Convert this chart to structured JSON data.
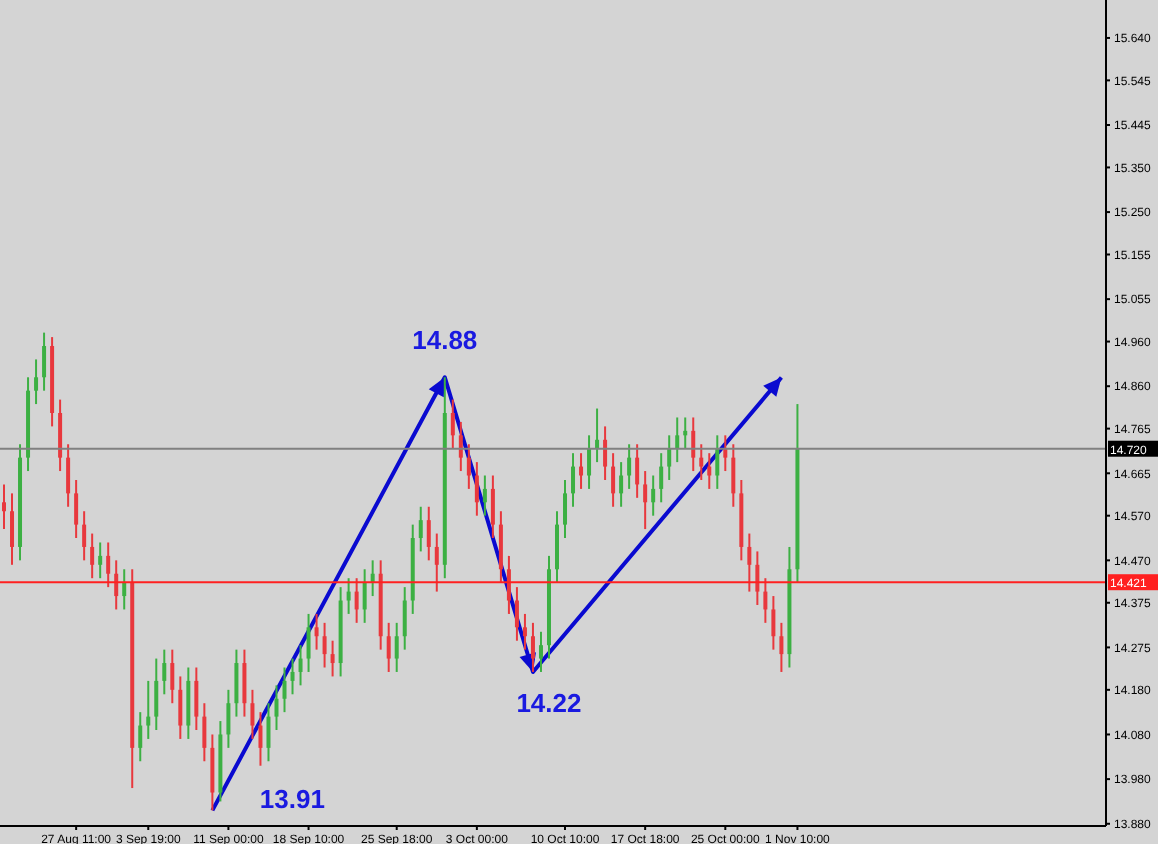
{
  "chart_data": {
    "type": "candlestick",
    "categories": [
      null,
      null,
      null,
      null,
      null,
      null,
      null,
      null,
      null,
      "27 Aug 11:00",
      null,
      null,
      null,
      null,
      null,
      null,
      null,
      null,
      "3 Sep 19:00",
      null,
      null,
      null,
      null,
      null,
      null,
      null,
      null,
      null,
      "11 Sep 00:00",
      null,
      null,
      null,
      null,
      null,
      null,
      null,
      null,
      null,
      "18 Sep 10:00",
      null,
      null,
      null,
      null,
      null,
      null,
      null,
      null,
      null,
      null,
      "25 Sep 18:00",
      null,
      null,
      null,
      null,
      null,
      null,
      null,
      null,
      null,
      "3 Oct 00:00",
      null,
      null,
      null,
      null,
      null,
      null,
      null,
      null,
      null,
      null,
      "10 Oct 10:00",
      null,
      null,
      null,
      null,
      null,
      null,
      null,
      null,
      null,
      "17 Oct 18:00",
      null,
      null,
      null,
      null,
      null,
      null,
      null,
      null,
      null,
      "25 Oct 00:00",
      null,
      null,
      null,
      null,
      null,
      null,
      null,
      null,
      "1 Nov 10:00",
      null,
      null,
      null,
      null,
      null,
      null,
      null,
      null,
      null,
      null,
      null,
      null,
      null,
      null,
      null,
      null,
      null,
      null,
      null,
      null,
      null,
      null,
      null,
      null,
      null,
      null,
      null,
      null,
      null,
      null,
      null,
      null,
      null,
      null,
      null,
      null,
      null,
      null
    ],
    "ohlc": [
      [
        14.6,
        14.64,
        14.54,
        14.58
      ],
      [
        14.58,
        14.62,
        14.46,
        14.5
      ],
      [
        14.5,
        14.73,
        14.47,
        14.7
      ],
      [
        14.7,
        14.88,
        14.67,
        14.85
      ],
      [
        14.85,
        14.92,
        14.82,
        14.88
      ],
      [
        14.88,
        14.98,
        14.85,
        14.95
      ],
      [
        14.95,
        14.97,
        14.77,
        14.8
      ],
      [
        14.8,
        14.83,
        14.67,
        14.7
      ],
      [
        14.7,
        14.73,
        14.59,
        14.62
      ],
      [
        14.62,
        14.65,
        14.52,
        14.55
      ],
      [
        14.55,
        14.58,
        14.47,
        14.5
      ],
      [
        14.5,
        14.53,
        14.43,
        14.46
      ],
      [
        14.46,
        14.51,
        14.43,
        14.48
      ],
      [
        14.48,
        14.51,
        14.41,
        14.44
      ],
      [
        14.44,
        14.47,
        14.36,
        14.39
      ],
      [
        14.39,
        14.45,
        14.36,
        14.42
      ],
      [
        14.42,
        14.45,
        13.96,
        14.05
      ],
      [
        14.05,
        14.13,
        14.02,
        14.1
      ],
      [
        14.1,
        14.2,
        14.07,
        14.12
      ],
      [
        14.12,
        14.25,
        14.09,
        14.2
      ],
      [
        14.2,
        14.27,
        14.17,
        14.24
      ],
      [
        14.24,
        14.27,
        14.15,
        14.18
      ],
      [
        14.18,
        14.21,
        14.07,
        14.1
      ],
      [
        14.1,
        14.23,
        14.07,
        14.2
      ],
      [
        14.2,
        14.23,
        14.09,
        14.12
      ],
      [
        14.12,
        14.15,
        14.02,
        14.05
      ],
      [
        14.05,
        14.08,
        13.91,
        13.95
      ],
      [
        13.95,
        14.11,
        13.93,
        14.08
      ],
      [
        14.08,
        14.18,
        14.05,
        14.15
      ],
      [
        14.15,
        14.27,
        14.12,
        14.24
      ],
      [
        14.24,
        14.27,
        14.12,
        14.15
      ],
      [
        14.15,
        14.18,
        14.07,
        14.1
      ],
      [
        14.1,
        14.13,
        14.01,
        14.05
      ],
      [
        14.05,
        14.15,
        14.02,
        14.12
      ],
      [
        14.12,
        14.19,
        14.09,
        14.16
      ],
      [
        14.16,
        14.23,
        14.13,
        14.2
      ],
      [
        14.2,
        14.25,
        14.17,
        14.22
      ],
      [
        14.22,
        14.28,
        14.19,
        14.25
      ],
      [
        14.25,
        14.35,
        14.22,
        14.32
      ],
      [
        14.32,
        14.35,
        14.27,
        14.3
      ],
      [
        14.3,
        14.33,
        14.23,
        14.26
      ],
      [
        14.26,
        14.29,
        14.21,
        14.24
      ],
      [
        14.24,
        14.41,
        14.21,
        14.38
      ],
      [
        14.38,
        14.43,
        14.35,
        14.4
      ],
      [
        14.4,
        14.43,
        14.33,
        14.36
      ],
      [
        14.36,
        14.45,
        14.33,
        14.42
      ],
      [
        14.42,
        14.47,
        14.39,
        14.44
      ],
      [
        14.44,
        14.47,
        14.27,
        14.3
      ],
      [
        14.3,
        14.33,
        14.22,
        14.25
      ],
      [
        14.25,
        14.33,
        14.22,
        14.3
      ],
      [
        14.3,
        14.41,
        14.27,
        14.38
      ],
      [
        14.38,
        14.55,
        14.35,
        14.52
      ],
      [
        14.52,
        14.59,
        14.49,
        14.56
      ],
      [
        14.56,
        14.59,
        14.47,
        14.5
      ],
      [
        14.5,
        14.53,
        14.4,
        14.46
      ],
      [
        14.46,
        14.88,
        14.43,
        14.8
      ],
      [
        14.8,
        14.83,
        14.72,
        14.75
      ],
      [
        14.75,
        14.78,
        14.67,
        14.7
      ],
      [
        14.7,
        14.73,
        14.63,
        14.66
      ],
      [
        14.66,
        14.69,
        14.57,
        14.6
      ],
      [
        14.6,
        14.66,
        14.57,
        14.63
      ],
      [
        14.63,
        14.66,
        14.52,
        14.55
      ],
      [
        14.55,
        14.58,
        14.42,
        14.45
      ],
      [
        14.45,
        14.48,
        14.35,
        14.38
      ],
      [
        14.38,
        14.41,
        14.29,
        14.32
      ],
      [
        14.32,
        14.35,
        14.27,
        14.3
      ],
      [
        14.3,
        14.33,
        14.22,
        14.25
      ],
      [
        14.25,
        14.31,
        14.22,
        14.28
      ],
      [
        14.28,
        14.48,
        14.25,
        14.45
      ],
      [
        14.45,
        14.58,
        14.42,
        14.55
      ],
      [
        14.55,
        14.65,
        14.52,
        14.62
      ],
      [
        14.62,
        14.71,
        14.59,
        14.68
      ],
      [
        14.68,
        14.71,
        14.63,
        14.66
      ],
      [
        14.66,
        14.75,
        14.63,
        14.72
      ],
      [
        14.72,
        14.81,
        14.69,
        14.74
      ],
      [
        14.74,
        14.77,
        14.65,
        14.68
      ],
      [
        14.68,
        14.71,
        14.59,
        14.62
      ],
      [
        14.62,
        14.69,
        14.59,
        14.66
      ],
      [
        14.66,
        14.73,
        14.63,
        14.7
      ],
      [
        14.7,
        14.73,
        14.61,
        14.64
      ],
      [
        14.64,
        14.67,
        14.54,
        14.6
      ],
      [
        14.6,
        14.66,
        14.57,
        14.63
      ],
      [
        14.63,
        14.71,
        14.6,
        14.68
      ],
      [
        14.68,
        14.75,
        14.65,
        14.72
      ],
      [
        14.72,
        14.79,
        14.69,
        14.75
      ],
      [
        14.75,
        14.79,
        14.72,
        14.76
      ],
      [
        14.76,
        14.79,
        14.67,
        14.7
      ],
      [
        14.7,
        14.73,
        14.65,
        14.68
      ],
      [
        14.68,
        14.71,
        14.63,
        14.66
      ],
      [
        14.66,
        14.75,
        14.63,
        14.72
      ],
      [
        14.72,
        14.75,
        14.67,
        14.7
      ],
      [
        14.7,
        14.73,
        14.59,
        14.62
      ],
      [
        14.62,
        14.65,
        14.47,
        14.5
      ],
      [
        14.5,
        14.53,
        14.4,
        14.46
      ],
      [
        14.46,
        14.49,
        14.37,
        14.4
      ],
      [
        14.4,
        14.43,
        14.33,
        14.36
      ],
      [
        14.36,
        14.39,
        14.27,
        14.3
      ],
      [
        14.3,
        14.33,
        14.22,
        14.26
      ],
      [
        14.26,
        14.5,
        14.23,
        14.45
      ],
      [
        14.45,
        14.82,
        14.42,
        14.72
      ],
      null,
      null,
      null,
      null,
      null,
      null,
      null,
      null,
      null,
      null,
      null,
      null,
      null,
      null,
      null,
      null,
      null,
      null,
      null,
      null,
      null,
      null,
      null,
      null,
      null,
      null,
      null,
      null,
      null,
      null,
      null,
      null,
      null,
      null,
      null,
      null,
      null,
      null
    ],
    "ylim": [
      13.875,
      15.725
    ],
    "yticks": [
      {
        "value": 15.64,
        "label": "15.640"
      },
      15.545,
      15.445,
      {
        "value": 15.35,
        "label": "15.350"
      },
      {
        "value": 15.25,
        "label": "15.250"
      },
      15.155,
      15.055,
      {
        "value": 14.96,
        "label": "14.960"
      },
      {
        "value": 14.86,
        "label": "14.860"
      },
      14.765,
      14.665,
      {
        "value": 14.57,
        "label": "14.570"
      },
      {
        "value": 14.47,
        "label": "14.470"
      },
      14.375,
      14.275,
      {
        "value": 14.18,
        "label": "14.180"
      },
      {
        "value": 14.08,
        "label": "14.080"
      },
      {
        "value": 13.98,
        "label": "13.980"
      },
      {
        "value": 13.88,
        "label": "13.880"
      }
    ],
    "ref_lines": [
      {
        "axis": "y",
        "value": 14.72,
        "label": "14.720",
        "color": "#808080"
      },
      {
        "axis": "y",
        "value": 14.421,
        "label": "14.421",
        "color": "#ff2020"
      }
    ],
    "annotations": [
      "13.91",
      "14.88",
      "14.22"
    ]
  }
}
